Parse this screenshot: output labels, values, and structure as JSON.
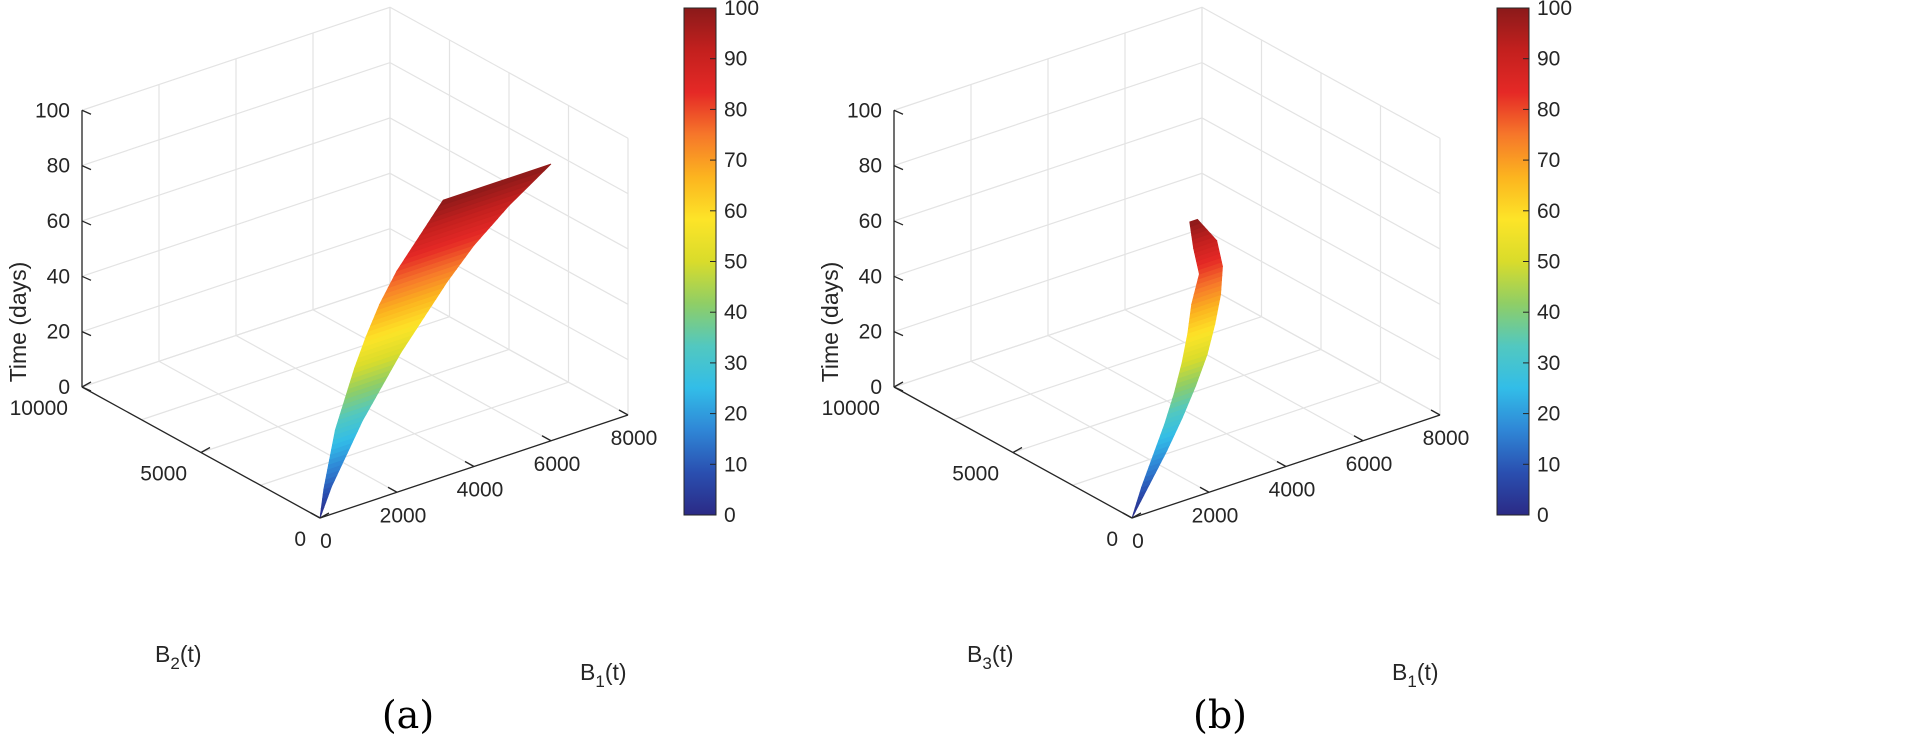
{
  "colormap": [
    "#2b2a86",
    "#2a4fb0",
    "#2f86d6",
    "#32bde8",
    "#52c8c0",
    "#8fce66",
    "#d9dc2b",
    "#fde428",
    "#fcb41f",
    "#f6772a",
    "#e52926",
    "#c3201e",
    "#8b1a1a"
  ],
  "chart_data": [
    {
      "type": "surface",
      "caption": "(a)",
      "xlabel": "B",
      "xlabel_sub": "1",
      "xlabel_suffix": "(t)",
      "ylabel": "B",
      "ylabel_sub": "2",
      "ylabel_suffix": "(t)",
      "zlabel": "Time (days)",
      "xlim": [
        0,
        8000
      ],
      "ylim": [
        0,
        10000
      ],
      "zlim": [
        0,
        100
      ],
      "xticks": [
        "0",
        "2000",
        "4000",
        "6000",
        "8000"
      ],
      "yticks": [
        "0",
        "5000",
        "10000"
      ],
      "zticks": [
        "0",
        "20",
        "40",
        "60",
        "80",
        "100"
      ],
      "colorbar_ticks": [
        "0",
        "10",
        "20",
        "30",
        "40",
        "50",
        "60",
        "70",
        "80",
        "90",
        "100"
      ],
      "color_range": [
        0,
        100
      ],
      "curve_front": [
        {
          "t": 0,
          "x": 0,
          "y": 0
        },
        {
          "t": 10,
          "x": 300,
          "y": 0
        },
        {
          "t": 20,
          "x": 700,
          "y": 0
        },
        {
          "t": 30,
          "x": 1100,
          "y": 0
        },
        {
          "t": 40,
          "x": 1600,
          "y": 0
        },
        {
          "t": 50,
          "x": 2100,
          "y": 0
        },
        {
          "t": 60,
          "x": 2700,
          "y": 0
        },
        {
          "t": 70,
          "x": 3300,
          "y": 0
        },
        {
          "t": 80,
          "x": 4000,
          "y": 0
        },
        {
          "t": 90,
          "x": 4900,
          "y": 0
        },
        {
          "t": 100,
          "x": 6000,
          "y": 0
        }
      ],
      "curve_back": [
        {
          "t": 0,
          "x": 0,
          "y": 0
        },
        {
          "t": 10,
          "x": 100,
          "y": 0
        },
        {
          "t": 20,
          "x": 250,
          "y": 0
        },
        {
          "t": 30,
          "x": 400,
          "y": 0
        },
        {
          "t": 40,
          "x": 650,
          "y": 0
        },
        {
          "t": 50,
          "x": 900,
          "y": 0
        },
        {
          "t": 60,
          "x": 1200,
          "y": 0
        },
        {
          "t": 70,
          "x": 1550,
          "y": 0
        },
        {
          "t": 80,
          "x": 2000,
          "y": 0
        },
        {
          "t": 90,
          "x": 2600,
          "y": 0
        },
        {
          "t": 100,
          "x": 3200,
          "y": 0
        }
      ]
    },
    {
      "type": "surface",
      "caption": "(b)",
      "xlabel": "B",
      "xlabel_sub": "1",
      "xlabel_suffix": "(t)",
      "ylabel": "B",
      "ylabel_sub": "3",
      "ylabel_suffix": "(t)",
      "zlabel": "Time (days)",
      "xlim": [
        0,
        8000
      ],
      "ylim": [
        0,
        10000
      ],
      "zlim": [
        0,
        100
      ],
      "xticks": [
        "0",
        "2000",
        "4000",
        "6000",
        "8000"
      ],
      "yticks": [
        "0",
        "5000",
        "10000"
      ],
      "zticks": [
        "0",
        "20",
        "40",
        "60",
        "80",
        "100"
      ],
      "colorbar_ticks": [
        "0",
        "10",
        "20",
        "30",
        "40",
        "50",
        "60",
        "70",
        "80",
        "90",
        "100"
      ],
      "color_range": [
        0,
        100
      ],
      "curve_front": [
        {
          "t": 0,
          "x": 0,
          "y": 0
        },
        {
          "t": 10,
          "x": 450,
          "y": 0
        },
        {
          "t": 20,
          "x": 900,
          "y": 0
        },
        {
          "t": 30,
          "x": 1300,
          "y": 0
        },
        {
          "t": 40,
          "x": 1650,
          "y": 0
        },
        {
          "t": 50,
          "x": 1950,
          "y": 0
        },
        {
          "t": 60,
          "x": 2150,
          "y": 0
        },
        {
          "t": 70,
          "x": 2300,
          "y": 0
        },
        {
          "t": 80,
          "x": 2350,
          "y": 0
        },
        {
          "t": 90,
          "x": 2200,
          "y": 0
        },
        {
          "t": 100,
          "x": 1700,
          "y": 0
        }
      ],
      "curve_back": [
        {
          "t": 0,
          "x": 0,
          "y": 0
        },
        {
          "t": 10,
          "x": 250,
          "y": 0
        },
        {
          "t": 20,
          "x": 550,
          "y": 0
        },
        {
          "t": 30,
          "x": 850,
          "y": 0
        },
        {
          "t": 40,
          "x": 1100,
          "y": 0
        },
        {
          "t": 50,
          "x": 1300,
          "y": 0
        },
        {
          "t": 60,
          "x": 1450,
          "y": 0
        },
        {
          "t": 70,
          "x": 1550,
          "y": 0
        },
        {
          "t": 80,
          "x": 1750,
          "y": 0
        },
        {
          "t": 90,
          "x": 1600,
          "y": 0
        },
        {
          "t": 100,
          "x": 1500,
          "y": 0
        }
      ]
    }
  ]
}
